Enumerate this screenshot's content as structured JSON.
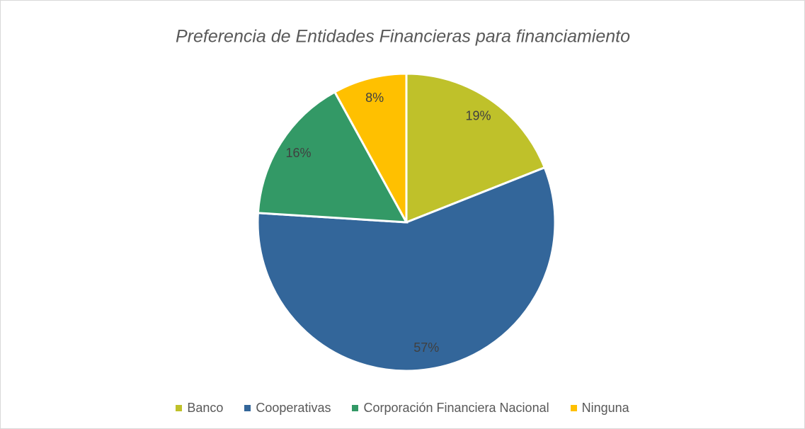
{
  "chart_data": {
    "type": "pie",
    "title": "Preferencia de Entidades Financieras para financiamiento",
    "categories": [
      "Banco",
      "Cooperativas",
      "Corporación Financiera Nacional",
      "Ninguna"
    ],
    "values": [
      19,
      57,
      16,
      8
    ],
    "value_labels": [
      "19%",
      "57%",
      "16%",
      "8%"
    ],
    "colors": [
      "#bfc12a",
      "#33669a",
      "#339966",
      "#ffc000"
    ],
    "legend": "bottom"
  }
}
